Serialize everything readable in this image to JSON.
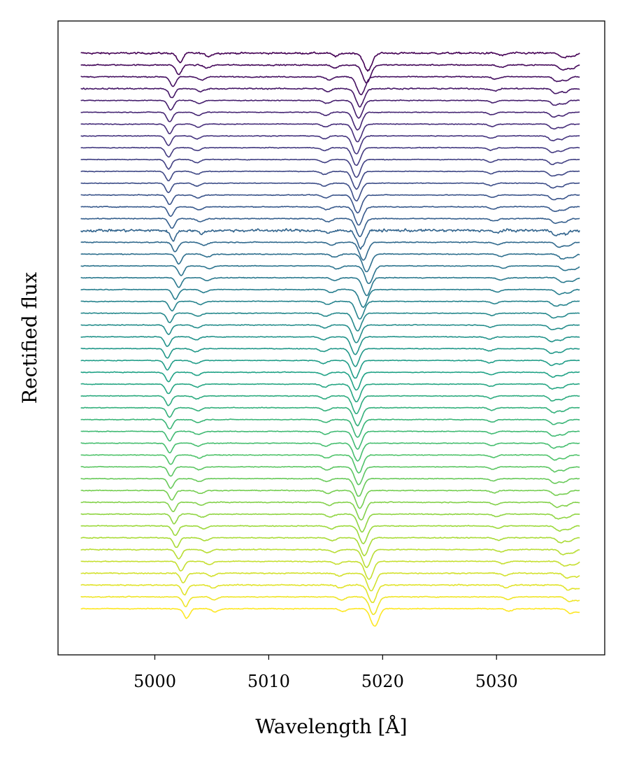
{
  "chart_data": {
    "type": "line",
    "title": "",
    "xlabel": "Wavelength [Å]",
    "ylabel": "Rectified flux",
    "xlim": [
      4991.5,
      5039.5
    ],
    "x_ticks": [
      5000,
      5010,
      5020,
      5030
    ],
    "x_tick_labels": [
      "5000",
      "5010",
      "5020",
      "5030"
    ],
    "y_ticks": [],
    "wavelength_range": [
      4993.5,
      5037.3
    ],
    "n_spectra": 48,
    "vertical_offset_between_spectra": 0.1,
    "grid": false,
    "legend": "none",
    "colormap": "viridis",
    "colormap_stops": [
      "#440154",
      "#46327e",
      "#365c8d",
      "#277f8e",
      "#1fa187",
      "#4ac16d",
      "#a0da39",
      "#fde725"
    ],
    "absorption_lines": [
      {
        "rest_wavelength": 5001.5,
        "depth": 0.08,
        "width": 0.25
      },
      {
        "rest_wavelength": 5004.0,
        "depth": 0.025,
        "width": 0.3
      },
      {
        "rest_wavelength": 5015.2,
        "depth": 0.025,
        "width": 0.3
      },
      {
        "rest_wavelength": 5018.0,
        "depth": 0.15,
        "width": 0.35
      },
      {
        "rest_wavelength": 5029.8,
        "depth": 0.02,
        "width": 0.3
      },
      {
        "rest_wavelength": 5035.2,
        "depth": 0.04,
        "width": 0.3
      },
      {
        "rest_wavelength": 5036.0,
        "depth": 0.03,
        "width": 0.3
      }
    ],
    "line_center_shift_by_spectrum": [
      0.7,
      0.6,
      0.1,
      0.0,
      -0.1,
      -0.2,
      -0.2,
      -0.3,
      -0.3,
      -0.3,
      -0.3,
      -0.3,
      -0.2,
      -0.1,
      0.0,
      0.1,
      0.3,
      0.6,
      0.8,
      0.6,
      0.3,
      0.0,
      -0.2,
      -0.3,
      -0.4,
      -0.4,
      -0.4,
      -0.3,
      -0.3,
      -0.3,
      -0.2,
      -0.2,
      -0.2,
      -0.2,
      -0.1,
      -0.1,
      -0.1,
      0.0,
      0.1,
      0.2,
      0.3,
      0.4,
      0.6,
      0.8,
      1.0,
      1.1,
      1.2,
      1.3
    ],
    "noise_level_by_spectrum": [
      0.012,
      0.008,
      0.007,
      0.009,
      0.005,
      0.005,
      0.005,
      0.005,
      0.005,
      0.005,
      0.005,
      0.005,
      0.005,
      0.006,
      0.006,
      0.018,
      0.006,
      0.006,
      0.005,
      0.005,
      0.005,
      0.005,
      0.005,
      0.005,
      0.005,
      0.005,
      0.005,
      0.005,
      0.005,
      0.005,
      0.005,
      0.005,
      0.005,
      0.005,
      0.005,
      0.005,
      0.005,
      0.006,
      0.006,
      0.006,
      0.006,
      0.006,
      0.006,
      0.006,
      0.007,
      0.008,
      0.006,
      0.006
    ]
  }
}
